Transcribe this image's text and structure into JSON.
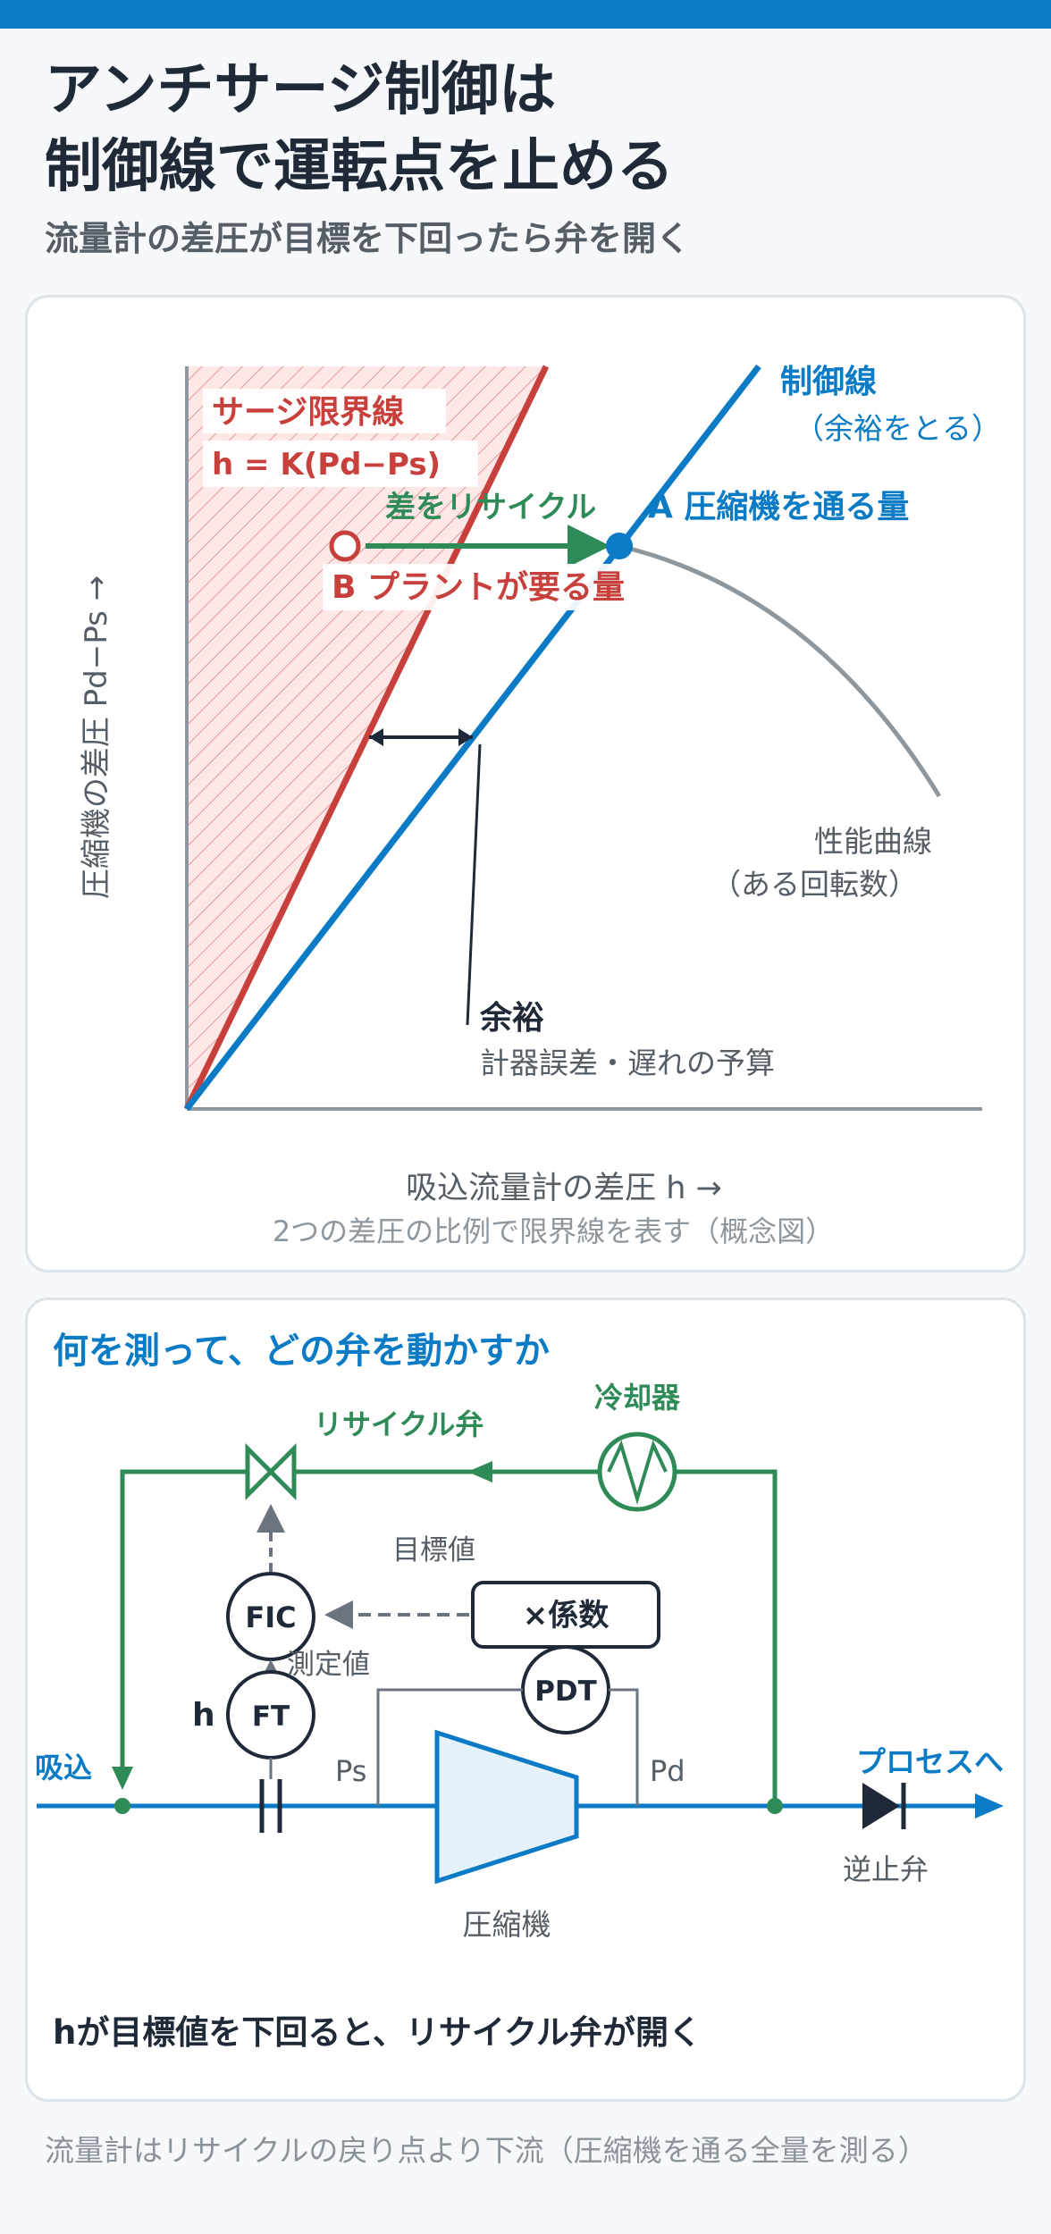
{
  "header": {
    "title_line1": "アンチサージ制御は",
    "title_line2": "制御線で運転点を止める",
    "subtitle": "流量計の差圧が目標を下回ったら弁を開く"
  },
  "chart": {
    "surge_line_label": "サージ限界線",
    "surge_line_formula": "h = K(Pd−Ps)",
    "control_line_label": "制御線",
    "control_line_note": "（余裕をとる）",
    "recycle_label": "差をリサイクル",
    "point_a_label": "A 圧縮機を通る量",
    "point_b_label": "B プラントが要る量",
    "margin_label": "余裕",
    "margin_note": "計器誤差・遅れの予算",
    "perf_curve_label": "性能曲線",
    "perf_curve_note": "（ある回転数）",
    "y_axis_label": "圧縮機の差圧 Pd−Ps →",
    "x_axis_label": "吸込流量計の差圧 h →",
    "caption": "2つの差圧の比例で限界線を表す（概念図）",
    "colors": {
      "surge": "#c8403c",
      "control": "#0a7bc4",
      "recycle": "#2e8b57",
      "perf": "#8f979e"
    }
  },
  "diagram": {
    "heading": "何を測って、どの弁を動かすか",
    "recycle_valve_label": "リサイクル弁",
    "cooler_label": "冷却器",
    "setpoint_label": "目標値",
    "measured_label": "測定値",
    "fic_label": "FIC",
    "multiplier_label": "×係数",
    "pdt_label": "PDT",
    "ft_label": "FT",
    "h_label": "h",
    "ps_label": "Ps",
    "pd_label": "Pd",
    "inlet_label": "吸込",
    "to_process_label": "プロセスへ",
    "check_valve_label": "逆止弁",
    "compressor_label": "圧縮機",
    "conclusion": "hが目標値を下回ると、リサイクル弁が開く"
  },
  "footer": {
    "note": "流量計はリサイクルの戻り点より下流（圧縮機を通る全量を測る）"
  }
}
